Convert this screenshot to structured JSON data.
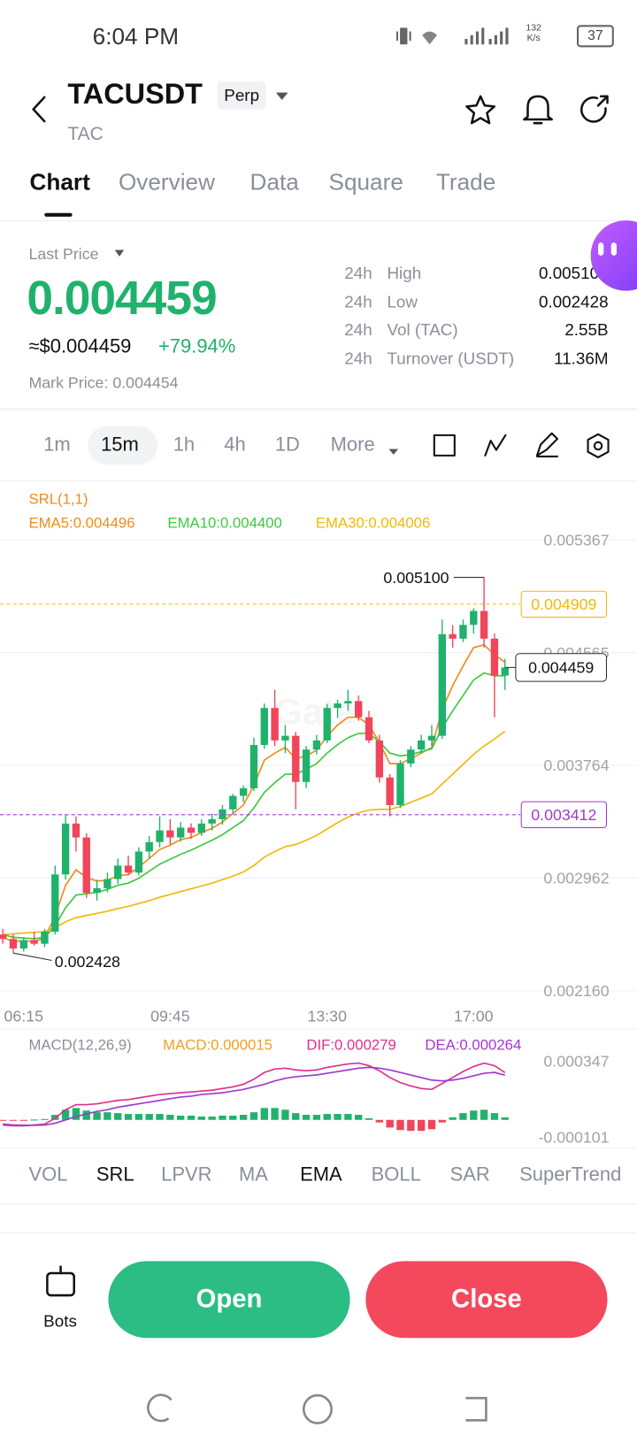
{
  "status_bar": {
    "time": "6:04 PM",
    "net_speed": "132",
    "net_unit": "K/s",
    "battery": "37"
  },
  "header": {
    "symbol": "TACUSDT",
    "badge": "Perp",
    "base": "TAC"
  },
  "tabs": {
    "items": [
      "Chart",
      "Overview",
      "Data",
      "Square",
      "Trade"
    ],
    "active": 0
  },
  "price": {
    "label": "Last Price",
    "last": "0.004459",
    "usd": "≈$0.004459",
    "change": "+79.94%",
    "mark": "Mark Price: 0.004454"
  },
  "stats": [
    [
      "24h",
      "High",
      "0.005100"
    ],
    [
      "24h",
      "Low",
      "0.002428"
    ],
    [
      "24h",
      "Vol (TAC)",
      "2.55B"
    ],
    [
      "24h",
      "Turnover (USDT)",
      "11.36M"
    ]
  ],
  "intervals": {
    "items": [
      "1m",
      "15m",
      "1h",
      "4h",
      "1D",
      "More"
    ],
    "active": 1
  },
  "indicator_title": "SRL(1,1)",
  "watermark": "Gate",
  "chart_data": [
    {
      "type": "candlestick",
      "categories": [
        null,
        null,
        "06:15",
        null,
        null,
        null,
        null,
        null,
        null,
        null,
        null,
        null,
        null,
        null,
        null,
        null,
        "09:45",
        null,
        null,
        null,
        null,
        null,
        null,
        null,
        null,
        null,
        null,
        null,
        null,
        null,
        null,
        "13:30",
        null,
        null,
        null,
        null,
        null,
        null,
        null,
        null,
        null,
        null,
        null,
        null,
        null,
        "17:00",
        null,
        null,
        null
      ],
      "open": [
        0.00256,
        0.002528,
        0.00246,
        0.00252,
        0.002494,
        0.00258,
        0.002987,
        0.003349,
        0.00325,
        0.002856,
        0.002889,
        0.002954,
        0.00305,
        0.003,
        0.00315,
        0.003217,
        0.0033,
        0.00325,
        0.00332,
        0.003283,
        0.003349,
        0.00338,
        0.00345,
        0.003546,
        0.0036,
        0.003908,
        0.004171,
        0.00394,
        0.003973,
        0.003645,
        0.003875,
        0.00394,
        0.004171,
        0.004203,
        0.00422,
        0.004105,
        0.00394,
        0.003677,
        0.00348,
        0.003776,
        0.003875,
        0.00394,
        0.003973,
        0.004696,
        0.004664,
        0.004762,
        0.004861,
        0.004664,
        0.004401
      ],
      "high": [
        0.0026,
        0.00256,
        0.00254,
        0.00258,
        0.0026,
        0.00305,
        0.003415,
        0.0034,
        0.00328,
        0.00295,
        0.003,
        0.0031,
        0.00312,
        0.00318,
        0.00326,
        0.0034,
        0.00338,
        0.00336,
        0.00335,
        0.00338,
        0.00342,
        0.00348,
        0.00356,
        0.00362,
        0.00396,
        0.004203,
        0.0043,
        0.00405,
        0.004,
        0.0039,
        0.00398,
        0.0042,
        0.00423,
        0.0043,
        0.00426,
        0.00415,
        0.00398,
        0.0037,
        0.0038,
        0.0039,
        0.00398,
        0.00405,
        0.0048,
        0.00476,
        0.0048,
        0.00488,
        0.0051,
        0.0047,
        0.00452
      ],
      "low": [
        0.002494,
        0.002428,
        0.00244,
        0.00248,
        0.00247,
        0.00256,
        0.00295,
        0.00315,
        0.00282,
        0.0028,
        0.00286,
        0.00292,
        0.00298,
        0.00298,
        0.0031,
        0.00318,
        0.0032,
        0.00322,
        0.00324,
        0.00326,
        0.0033,
        0.00334,
        0.00342,
        0.0035,
        0.00358,
        0.00388,
        0.0039,
        0.00385,
        0.00345,
        0.0036,
        0.00384,
        0.00392,
        0.0041,
        0.00415,
        0.00408,
        0.00392,
        0.00364,
        0.0034,
        0.00346,
        0.00375,
        0.00385,
        0.0039,
        0.00395,
        0.0046,
        0.00464,
        0.0047,
        0.0046,
        0.004105,
        0.0043
      ],
      "close": [
        0.002528,
        0.00246,
        0.00252,
        0.002494,
        0.00258,
        0.002987,
        0.003349,
        0.00325,
        0.002856,
        0.002889,
        0.002954,
        0.00305,
        0.003,
        0.00315,
        0.003217,
        0.0033,
        0.00325,
        0.00332,
        0.003283,
        0.003349,
        0.00338,
        0.00345,
        0.003546,
        0.0036,
        0.003908,
        0.004171,
        0.00394,
        0.003973,
        0.003645,
        0.003875,
        0.00394,
        0.004171,
        0.004203,
        0.00422,
        0.004105,
        0.00394,
        0.003677,
        0.00348,
        0.003776,
        0.003875,
        0.00394,
        0.003973,
        0.004696,
        0.004664,
        0.004762,
        0.004861,
        0.004664,
        0.004401,
        0.004459
      ],
      "up_color": "#20b26c",
      "down_color": "#f0455a",
      "lines": [
        {
          "name": "EMA5:0.004496",
          "color": "#f08c1a",
          "values": [
            0.00254,
            0.00251,
            0.002515,
            0.00251,
            0.002535,
            0.00269,
            0.00291,
            0.00302,
            0.002965,
            0.00294,
            0.002945,
            0.00298,
            0.002985,
            0.00304,
            0.0031,
            0.003165,
            0.003195,
            0.003235,
            0.00325,
            0.003285,
            0.003315,
            0.00336,
            0.00342,
            0.00348,
            0.00362,
            0.0038,
            0.00385,
            0.00389,
            0.00381,
            0.00383,
            0.00387,
            0.00397,
            0.00405,
            0.004105,
            0.004105,
            0.00405,
            0.003925,
            0.003775,
            0.003775,
            0.00381,
            0.00385,
            0.00389,
            0.00416,
            0.00433,
            0.00447,
            0.0046,
            0.00462,
            0.00455,
            0.004496
          ]
        },
        {
          "name": "EMA10:0.004400",
          "color": "#3ec93e",
          "values": [
            0.00256,
            0.00254,
            0.002535,
            0.00253,
            0.00254,
            0.00262,
            0.00275,
            0.00284,
            0.00285,
            0.00286,
            0.00288,
            0.00291,
            0.002925,
            0.00296,
            0.00301,
            0.00306,
            0.003095,
            0.00313,
            0.00316,
            0.003195,
            0.00323,
            0.00327,
            0.00332,
            0.00337,
            0.00346,
            0.00357,
            0.00364,
            0.0037,
            0.0037,
            0.003735,
            0.003775,
            0.00385,
            0.00391,
            0.00396,
            0.00399,
            0.00399,
            0.00393,
            0.00385,
            0.00383,
            0.00384,
            0.00386,
            0.00388,
            0.00403,
            0.00415,
            0.00426,
            0.00437,
            0.00442,
            0.0044,
            0.0044
          ]
        },
        {
          "name": "EMA30:0.004006",
          "color": "#f0b90b",
          "values": [
            0.00256,
            0.002565,
            0.00257,
            0.002575,
            0.00258,
            0.00261,
            0.00265,
            0.00268,
            0.002695,
            0.00271,
            0.002725,
            0.002745,
            0.00276,
            0.00278,
            0.0028,
            0.002825,
            0.002845,
            0.002865,
            0.002885,
            0.002905,
            0.002925,
            0.00295,
            0.002975,
            0.003005,
            0.00305,
            0.00311,
            0.00315,
            0.003185,
            0.0032,
            0.00323,
            0.003265,
            0.00331,
            0.003355,
            0.003395,
            0.003425,
            0.003445,
            0.00345,
            0.00345,
            0.00347,
            0.0035,
            0.00353,
            0.00356,
            0.00363,
            0.0037,
            0.00377,
            0.00384,
            0.0039,
            0.00395,
            0.004006
          ]
        }
      ],
      "ylim": [
        0.00216,
        0.005367
      ],
      "yticks": [
        0.005367,
        0.004565,
        0.003764,
        0.002962,
        {
          "value": 0.00216,
          "label": "0.002160"
        }
      ],
      "grid": true,
      "price_lines": [
        {
          "value": 0.004909,
          "label": "0.004909",
          "color": "#f0b90b"
        },
        {
          "value": 0.003412,
          "label": "0.003412",
          "color": "#a03ad0"
        }
      ],
      "high_marker": {
        "value": 0.0051,
        "label": "0.005100"
      },
      "low_marker": {
        "value": 0.002428,
        "label": "0.002428"
      },
      "last_marker": {
        "value": 0.004459,
        "label": "0.004459"
      }
    },
    {
      "type": "macd",
      "title": "MACD(12,26,9)",
      "histogram": {
        "name": "MACD:0.000015",
        "color": "#f0a020",
        "up_color": "#20b26c",
        "down_color": "#f0455a",
        "values": [
          -5e-06,
          -5e-06,
          -3e-06,
          2e-06,
          5e-06,
          3e-05,
          6e-05,
          7e-05,
          5.5e-05,
          4.5e-05,
          4.5e-05,
          4e-05,
          3.5e-05,
          3.5e-05,
          3.5e-05,
          3.5e-05,
          3e-05,
          2.5e-05,
          2.5e-05,
          2e-05,
          2e-05,
          2.5e-05,
          2.5e-05,
          3e-05,
          4.5e-05,
          7e-05,
          7e-05,
          6e-05,
          4e-05,
          3e-05,
          3e-05,
          3.5e-05,
          3.5e-05,
          3.5e-05,
          3e-05,
          1e-05,
          -1.5e-05,
          -4.5e-05,
          -6e-05,
          -6.5e-05,
          -6.5e-05,
          -5.5e-05,
          -1.5e-05,
          1.5e-05,
          4e-05,
          5.5e-05,
          6e-05,
          4e-05,
          1.5e-05
        ]
      },
      "series": [
        {
          "name": "DIF:0.000279",
          "color": "#e0308a",
          "values": [
            -3e-05,
            -3.5e-05,
            -3.5e-05,
            -3e-05,
            -2.5e-05,
            1e-05,
            6e-05,
            9e-05,
            9e-05,
            9.5e-05,
            0.000105,
            0.000115,
            0.00012,
            0.00013,
            0.00014,
            0.00015,
            0.000155,
            0.00016,
            0.000165,
            0.00017,
            0.000175,
            0.000185,
            0.000195,
            0.00021,
            0.00024,
            0.00028,
            0.0003,
            0.000305,
            0.000295,
            0.00029,
            0.000295,
            0.00031,
            0.00032,
            0.00033,
            0.000335,
            0.00032,
            0.00029,
            0.00025,
            0.00022,
            0.0002,
            0.000185,
            0.00018,
            0.000215,
            0.00025,
            0.000285,
            0.000315,
            0.000335,
            0.00032,
            0.000279
          ]
        },
        {
          "name": "DEA:0.000264",
          "color": "#a03ad0",
          "values": [
            -2.5e-05,
            -3e-05,
            -3.2e-05,
            -3.2e-05,
            -3e-05,
            -2e-05,
            0,
            2e-05,
            3.5e-05,
            5e-05,
            6e-05,
            7.5e-05,
            8.5e-05,
            9.5e-05,
            0.000105,
            0.000115,
            0.000125,
            0.000135,
            0.00014,
            0.00015,
            0.000155,
            0.00016,
            0.00017,
            0.00018,
            0.000195,
            0.00021,
            0.00023,
            0.000245,
            0.000255,
            0.00026,
            0.000265,
            0.000275,
            0.000285,
            0.000295,
            0.000305,
            0.00031,
            0.000305,
            0.000295,
            0.00028,
            0.000265,
            0.00025,
            0.000235,
            0.00023,
            0.000235,
            0.000245,
            0.00026,
            0.000275,
            0.00028,
            0.000264
          ]
        }
      ],
      "ylim": [
        -0.000101,
        0.000347
      ],
      "yticks": [
        0.000347,
        -0.000101
      ]
    }
  ],
  "indicators": {
    "items": [
      "VOL",
      "SRL",
      "LPVR",
      "MA",
      "EMA",
      "BOLL",
      "SAR",
      "SuperTrend"
    ],
    "active": [
      1,
      4
    ]
  },
  "actions": {
    "bots": "Bots",
    "open": "Open",
    "close": "Close"
  }
}
